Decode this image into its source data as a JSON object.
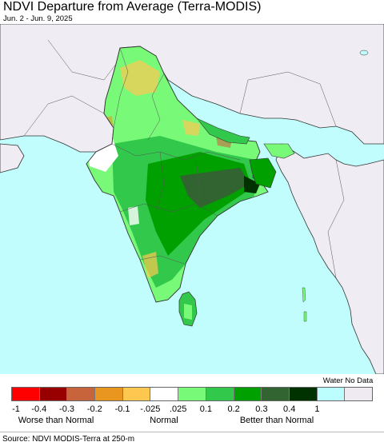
{
  "header": {
    "title": "NDVI Departure from Average (Terra-MODIS)",
    "date_range": "Jun. 2 - Jun. 9, 2025"
  },
  "map": {
    "ocean_color": "#c2fdfd",
    "land_nodata_color": "#f0ecf3",
    "border_color": "#333333"
  },
  "legend": {
    "water_nodata_label": "Water No Data",
    "swatches": [
      {
        "color": "#fe0000"
      },
      {
        "color": "#980000"
      },
      {
        "color": "#c8643c"
      },
      {
        "color": "#e89620"
      },
      {
        "color": "#fec850"
      },
      {
        "color": "#ffffff"
      },
      {
        "color": "#78fa78"
      },
      {
        "color": "#32c84b"
      },
      {
        "color": "#00a000"
      },
      {
        "color": "#326432"
      },
      {
        "color": "#003200"
      },
      {
        "color": "#bcfefe"
      },
      {
        "color": "#efeaf2"
      }
    ],
    "ticks": [
      "-1",
      "-0.4",
      "-0.3",
      "-0.2",
      "-0.1",
      "-.025",
      ".025",
      "0.1",
      "0.2",
      "0.3",
      "0.4",
      "1"
    ],
    "categories": {
      "worse": "Worse than Normal",
      "normal": "Normal",
      "better": "Better than Normal"
    }
  },
  "footer": {
    "source": "Source: NDVI MODIS-Terra at 250-m"
  }
}
